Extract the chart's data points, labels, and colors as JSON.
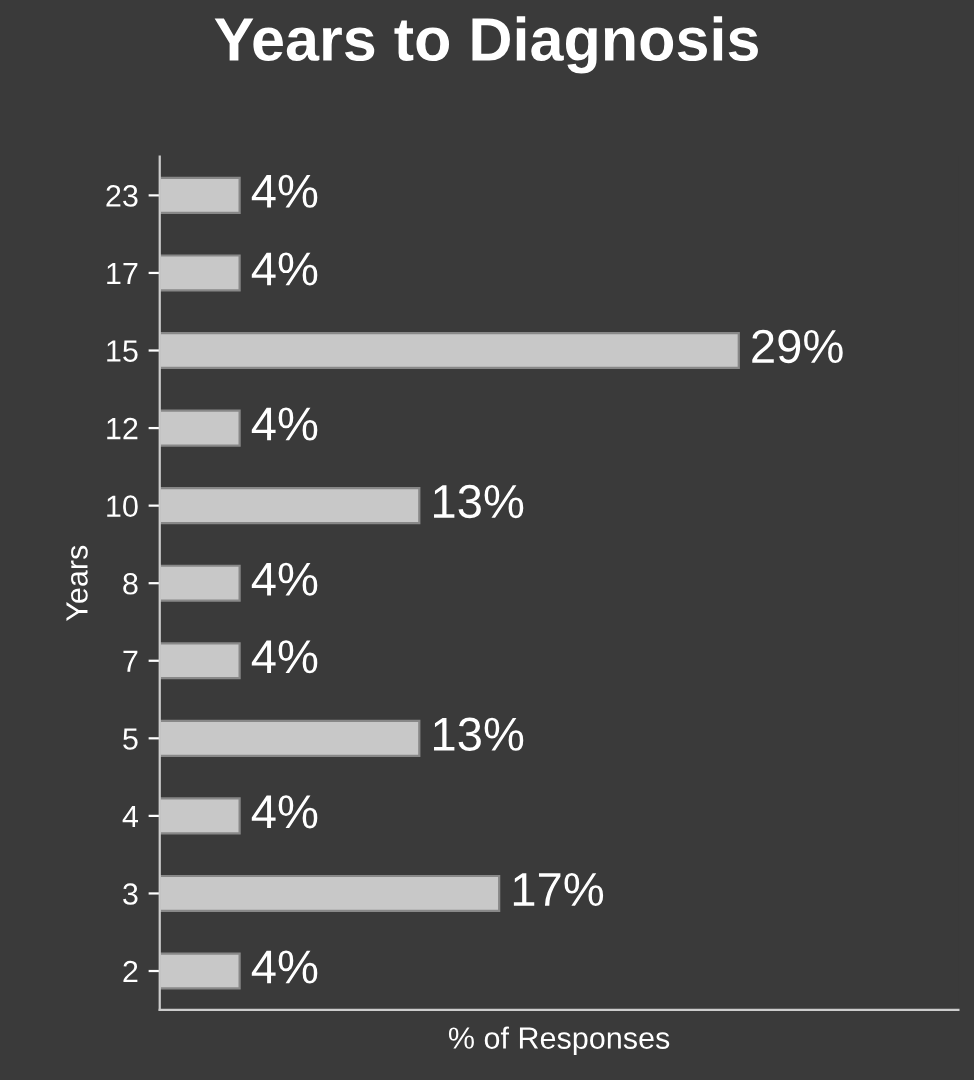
{
  "chart_data": {
    "type": "bar",
    "orientation": "horizontal",
    "title": "Years to Diagnosis",
    "xlabel": "% of Responses",
    "ylabel": "Years",
    "categories": [
      "23",
      "17",
      "15",
      "12",
      "10",
      "8",
      "7",
      "5",
      "4",
      "3",
      "2"
    ],
    "values": [
      4,
      4,
      29,
      4,
      13,
      4,
      4,
      13,
      4,
      17,
      4
    ],
    "value_labels": [
      "4%",
      "4%",
      "29%",
      "4%",
      "13%",
      "4%",
      "4%",
      "13%",
      "4%",
      "17%",
      "4%"
    ],
    "color": "#c8c8c8",
    "xlim": [
      0,
      40
    ],
    "tick_labels": "y",
    "grid": false,
    "legend": false
  }
}
